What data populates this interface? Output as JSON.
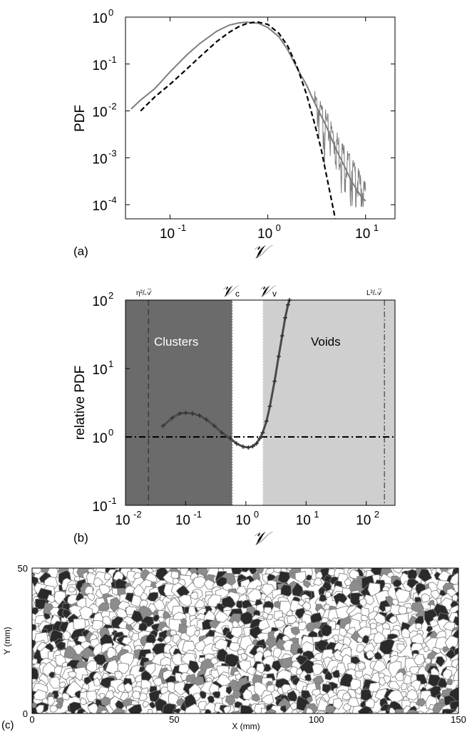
{
  "chart_data": [
    {
      "panel": "(a)",
      "type": "line",
      "xscale": "log",
      "yscale": "log",
      "xlim": [
        0.035,
        20
      ],
      "ylim": [
        5e-05,
        1
      ],
      "xticks": [
        "10",
        "10",
        "10"
      ],
      "xtick_exp": [
        "-1",
        "0",
        "1"
      ],
      "xtick_values": [
        0.1,
        1,
        10
      ],
      "yticks": [
        "10",
        "10",
        "10",
        "10",
        "10"
      ],
      "ytick_exp": [
        "-4",
        "-3",
        "-2",
        "-1",
        "0"
      ],
      "ytick_values": [
        0.0001,
        0.001,
        0.01,
        0.1,
        1
      ],
      "xlabel": "𝒱",
      "ylabel": "PDF",
      "grid": false,
      "series": [
        {
          "style": "gray-solid",
          "x": [
            0.04,
            0.05,
            0.07,
            0.1,
            0.15,
            0.2,
            0.3,
            0.4,
            0.5,
            0.6,
            0.8,
            1.0,
            1.3,
            1.6,
            2.0,
            2.5,
            3.0,
            3.5,
            4.0,
            5.0,
            6.0,
            7.0,
            8.0,
            9.0,
            10.0
          ],
          "y": [
            0.011,
            0.017,
            0.03,
            0.068,
            0.16,
            0.27,
            0.5,
            0.67,
            0.75,
            0.78,
            0.74,
            0.6,
            0.38,
            0.2,
            0.08,
            0.035,
            0.015,
            0.008,
            0.0045,
            0.0015,
            0.0007,
            0.00035,
            0.00022,
            0.00015,
            0.00012
          ]
        },
        {
          "style": "black-dashed",
          "x": [
            0.05,
            0.07,
            0.1,
            0.15,
            0.2,
            0.3,
            0.4,
            0.5,
            0.6,
            0.7,
            0.8,
            1.0,
            1.3,
            1.6,
            2.0,
            2.5,
            3.0,
            3.5,
            4.0,
            4.5,
            5.0
          ],
          "y": [
            0.01,
            0.02,
            0.037,
            0.08,
            0.14,
            0.3,
            0.47,
            0.62,
            0.72,
            0.77,
            0.78,
            0.7,
            0.45,
            0.24,
            0.085,
            0.022,
            0.0055,
            0.0016,
            0.0004,
            0.00012,
            4e-05
          ]
        }
      ]
    },
    {
      "panel": "(b)",
      "type": "line",
      "xscale": "log",
      "yscale": "log",
      "xlim": [
        0.01,
        300
      ],
      "ylim": [
        0.1,
        100
      ],
      "xticks": [
        "10",
        "10",
        "10",
        "10",
        "10"
      ],
      "xtick_exp": [
        "-2",
        "-1",
        "0",
        "1",
        "2"
      ],
      "xtick_values": [
        0.01,
        0.1,
        1,
        10,
        100
      ],
      "yticks": [
        "10",
        "10",
        "10",
        "10"
      ],
      "ytick_exp": [
        "-1",
        "0",
        "1",
        "2"
      ],
      "ytick_values": [
        0.1,
        1,
        10,
        100
      ],
      "xlabel": "𝒱",
      "ylabel": "relative PDF",
      "region_labels": {
        "clusters": "Clusters",
        "voids": "Voids"
      },
      "thresholds": {
        "nu_c": 0.6,
        "nu_v": 1.9,
        "eta": 0.024,
        "L": 200
      },
      "threshold_labels": {
        "nu_c": "𝒱",
        "nu_c_sub": "c",
        "nu_v": "𝒱",
        "nu_v_sub": "v",
        "eta": "η²/𝒜̅",
        "L": "L²/𝒜̅"
      },
      "reference_line": 1,
      "series": [
        {
          "style": "dark-markers",
          "x": [
            0.042,
            0.06,
            0.08,
            0.1,
            0.13,
            0.17,
            0.22,
            0.3,
            0.4,
            0.55,
            0.7,
            0.9,
            1.1,
            1.3,
            1.5,
            1.7,
            1.9,
            2.2,
            2.5,
            3.0,
            3.5,
            4.0,
            4.5,
            5.0,
            5.3
          ],
          "y": [
            1.45,
            1.9,
            2.2,
            2.25,
            2.2,
            2.05,
            1.8,
            1.45,
            1.15,
            0.95,
            0.8,
            0.72,
            0.7,
            0.73,
            0.8,
            0.95,
            1.15,
            1.7,
            2.8,
            6.5,
            15,
            30,
            55,
            85,
            100
          ]
        }
      ]
    },
    {
      "panel": "(c)",
      "type": "heatmap",
      "description_labels": true,
      "xlim": [
        0,
        150
      ],
      "ylim": [
        0,
        50
      ],
      "xticks": [
        "0",
        "50",
        "100",
        "150"
      ],
      "xtick_values": [
        0,
        50,
        100,
        150
      ],
      "yticks": [
        "0",
        "50"
      ],
      "ytick_values": [
        0,
        50
      ],
      "xlabel": "X (mm)",
      "ylabel": "Y (mm)",
      "cell_classes": [
        "cluster",
        "normal",
        "void"
      ],
      "colors": {
        "cluster": "#2a2a2a",
        "normal": "#ffffff",
        "void": "#8c8c8c",
        "edges": "#7a7a7a"
      }
    }
  ],
  "panel_labels": {
    "a": "(a)",
    "b": "(b)",
    "c": "(c)"
  },
  "colors": {
    "cluster_region": "#6b6b6b",
    "void_region": "#cfcfcf",
    "solid_curve": "#7d7d7d",
    "marker_curve": "#4a4a4a"
  }
}
